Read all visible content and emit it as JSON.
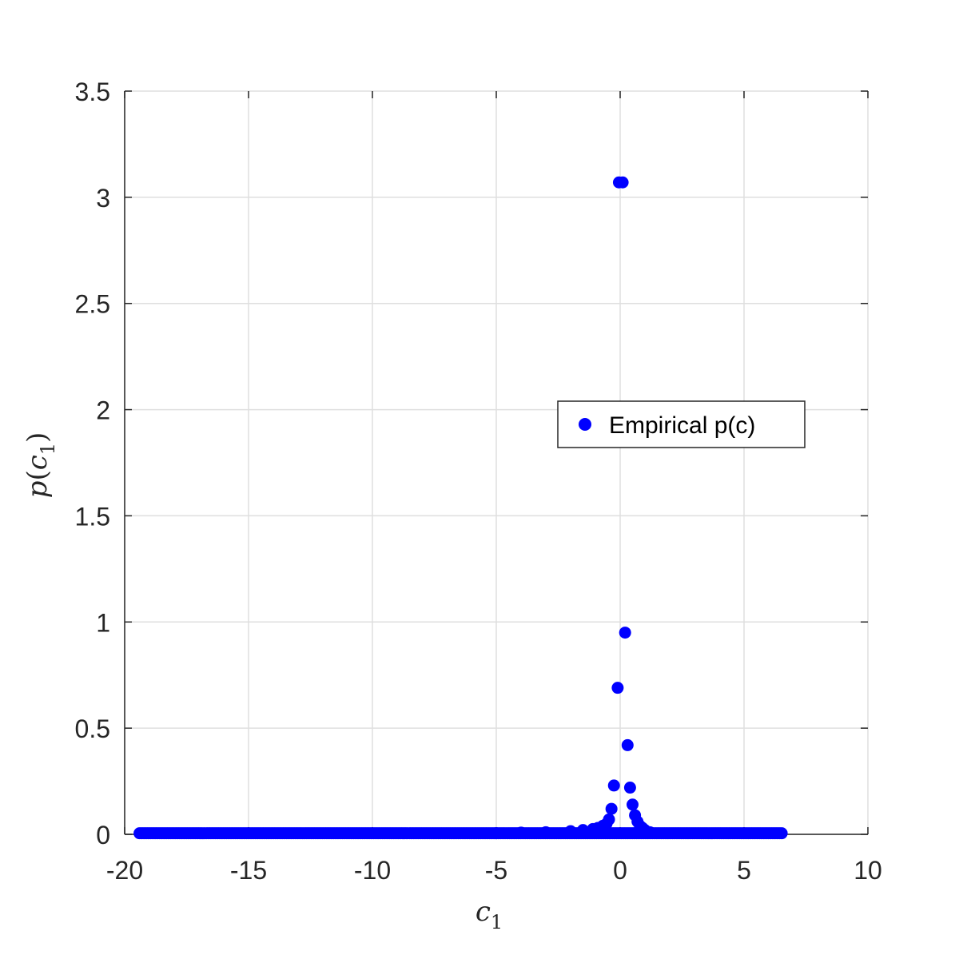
{
  "chart_data": {
    "type": "scatter",
    "xlabel": "c",
    "xlabel_sub": "1",
    "ylabel_func": "p",
    "ylabel_var": "c",
    "ylabel_sub": "1",
    "xlim": [
      -20,
      10
    ],
    "ylim": [
      0,
      3.5
    ],
    "xticks": [
      -20,
      -15,
      -10,
      -5,
      0,
      5,
      10
    ],
    "yticks": [
      0,
      0.5,
      1,
      1.5,
      2,
      2.5,
      3,
      3.5
    ],
    "xtick_labels": [
      "-20",
      "-15",
      "-10",
      "-5",
      "0",
      "5",
      "10"
    ],
    "ytick_labels": [
      "0",
      "0.5",
      "1",
      "1.5",
      "2",
      "2.5",
      "3",
      "3.5"
    ],
    "grid": true,
    "legend": {
      "position": "center-right",
      "entries": [
        "Empirical p(c)"
      ]
    },
    "series": [
      {
        "name": "Empirical p(c)",
        "color": "#0000ff",
        "x_range": [
          -19.4,
          6.6
        ],
        "peak_points": [
          {
            "x": -0.05,
            "y": 3.07
          },
          {
            "x": 0.1,
            "y": 3.07
          },
          {
            "x": 0.2,
            "y": 0.95
          },
          {
            "x": -0.1,
            "y": 0.69
          },
          {
            "x": 0.3,
            "y": 0.42
          },
          {
            "x": -0.25,
            "y": 0.23
          },
          {
            "x": 0.4,
            "y": 0.22
          },
          {
            "x": 0.5,
            "y": 0.14
          },
          {
            "x": -0.35,
            "y": 0.12
          },
          {
            "x": -0.45,
            "y": 0.07
          },
          {
            "x": 0.6,
            "y": 0.09
          },
          {
            "x": 0.7,
            "y": 0.06
          },
          {
            "x": -0.55,
            "y": 0.05
          },
          {
            "x": 0.8,
            "y": 0.04
          },
          {
            "x": -0.7,
            "y": 0.04
          },
          {
            "x": 0.9,
            "y": 0.03
          },
          {
            "x": 1.0,
            "y": 0.02
          },
          {
            "x": -0.9,
            "y": 0.03
          },
          {
            "x": 1.2,
            "y": 0.01
          },
          {
            "x": -1.1,
            "y": 0.025
          },
          {
            "x": -1.5,
            "y": 0.02
          },
          {
            "x": -2.0,
            "y": 0.015
          },
          {
            "x": -3.0,
            "y": 0.01
          },
          {
            "x": -4.0,
            "y": 0.008
          },
          {
            "x": -5.0,
            "y": 0.005
          }
        ]
      }
    ]
  }
}
